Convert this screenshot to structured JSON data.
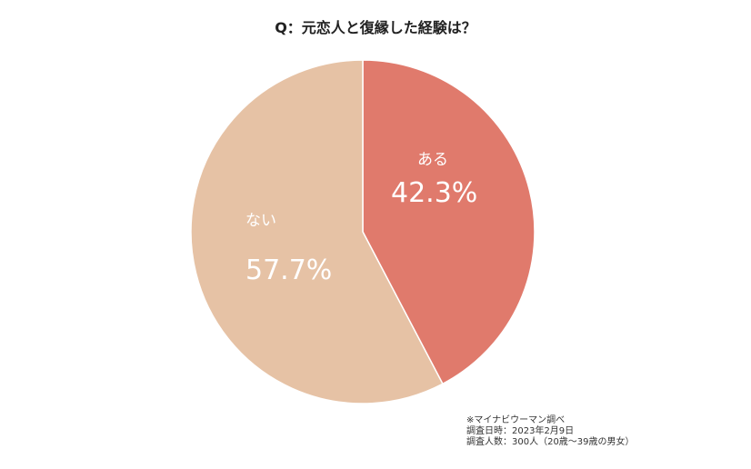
{
  "chart_data": {
    "type": "pie",
    "title": "Q：元恋人と復縁した経験は？",
    "slices": [
      {
        "label": "ある",
        "value": 42.3,
        "display": "42.3%",
        "color": "#e07a6c"
      },
      {
        "label": "ない",
        "value": 57.7,
        "display": "57.7%",
        "color": "#e6c2a5"
      }
    ]
  },
  "source": {
    "line1": "※マイナビウーマン調べ",
    "line2": "調査日時：2023年2月9日",
    "line3": "調査人数：300人（20歳～39歳の男女）"
  }
}
